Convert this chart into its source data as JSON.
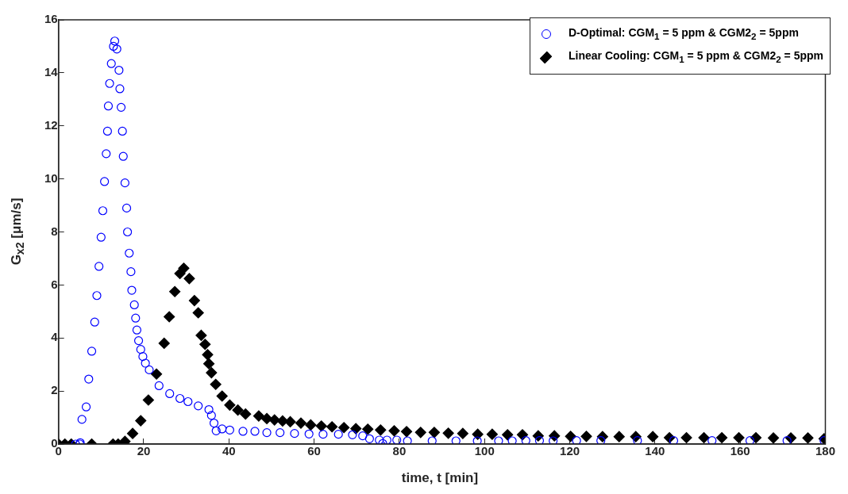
{
  "chart_data": {
    "type": "scatter",
    "xlabel": "time, t [min]",
    "ylabel": "G$_{x2}$ [μm/s]",
    "xlim": [
      0,
      180
    ],
    "xticks": [
      0,
      20,
      40,
      60,
      80,
      100,
      120,
      140,
      160,
      180
    ],
    "ylim": [
      0,
      16
    ],
    "yticks": [
      0,
      2,
      4,
      6,
      8,
      10,
      12,
      14,
      16
    ],
    "grid": false,
    "legend": "top right",
    "series": [
      {
        "name": "D-Optimal: CGM$_{1}$ = 5 ppm & CGM2$_{2}$ = 5ppm",
        "color": "#0000ff",
        "marker": "circle",
        "x": [
          4,
          5,
          5.1,
          5.5,
          6.5,
          7.1,
          7.8,
          8.5,
          9.0,
          9.5,
          10.0,
          10.4,
          10.8,
          11.2,
          11.5,
          11.7,
          12.0,
          12.4,
          12.9,
          13.2,
          13.7,
          14.2,
          14.4,
          14.7,
          15.0,
          15.2,
          15.6,
          16.0,
          16.2,
          16.6,
          17.0,
          17.2,
          17.8,
          18.1,
          18.4,
          18.8,
          19.3,
          19.8,
          20.4,
          21.3,
          23.6,
          26.1,
          28.5,
          30.4,
          32.8,
          35.3,
          35.9,
          36.5,
          37.0,
          38.4,
          40.2,
          43.3,
          46.1,
          48.9,
          52,
          55.4,
          58.8,
          62.1,
          65.7,
          69,
          71.4,
          73,
          75.3,
          76.1,
          77.1,
          79.4,
          81.9,
          87.7,
          93.3,
          98.3,
          103.3,
          106.5,
          109.7,
          112.9,
          116.1,
          121.6,
          127.3,
          135.9,
          144.4,
          153.4,
          162.3,
          171,
          179.7
        ],
        "values": [
          0,
          0,
          0.05,
          0.93,
          1.4,
          2.45,
          3.5,
          4.6,
          5.6,
          6.7,
          7.8,
          8.8,
          9.9,
          10.95,
          11.8,
          12.75,
          13.6,
          14.35,
          15.0,
          15.2,
          14.9,
          14.1,
          13.4,
          12.7,
          11.8,
          10.85,
          9.85,
          8.9,
          8.0,
          7.2,
          6.5,
          5.8,
          5.25,
          4.75,
          4.3,
          3.9,
          3.57,
          3.3,
          3.05,
          2.8,
          2.2,
          1.9,
          1.72,
          1.6,
          1.44,
          1.3,
          1.08,
          0.79,
          0.5,
          0.57,
          0.53,
          0.48,
          0.48,
          0.43,
          0.43,
          0.4,
          0.38,
          0.37,
          0.37,
          0.35,
          0.31,
          0.2,
          0.15,
          0.02,
          0.15,
          0.15,
          0.12,
          0.12,
          0.12,
          0.12,
          0.12,
          0.12,
          0.13,
          0.13,
          0.12,
          0.13,
          0.13,
          0.13,
          0.13,
          0.13,
          0.13,
          0.13,
          0.13
        ]
      },
      {
        "name": "Linear Cooling: CGM$_{1}$ = 5 ppm & CGM2$_{2}$ = 5ppm",
        "color": "#000000",
        "marker": "diamond",
        "x": [
          0,
          1.5,
          3,
          7.8,
          12.8,
          14,
          15.6,
          17.4,
          19.3,
          21.1,
          23,
          24.8,
          26,
          27.3,
          28.5,
          29.4,
          30.7,
          31.9,
          32.8,
          33.5,
          34.4,
          35,
          35.3,
          35.9,
          36.9,
          38.4,
          40.2,
          42.1,
          43.9,
          47,
          48.9,
          50.7,
          52.6,
          54.4,
          56.9,
          59.2,
          61.7,
          64.2,
          67,
          69.8,
          72.6,
          75.6,
          78.8,
          81.7,
          85,
          88.2,
          91.5,
          94.9,
          98.4,
          101.8,
          105.4,
          108.9,
          112.6,
          116.4,
          120.2,
          123.9,
          127.7,
          131.6,
          135.5,
          139.5,
          143.4,
          147.4,
          151.5,
          155.7,
          159.7,
          163.7,
          167.8,
          171.9,
          175.9,
          179.7
        ],
        "values": [
          0,
          0,
          0,
          0,
          0,
          0,
          0.1,
          0.4,
          0.88,
          1.66,
          2.64,
          3.8,
          4.8,
          5.75,
          6.43,
          6.63,
          6.24,
          5.41,
          4.95,
          4.1,
          3.76,
          3.37,
          3.03,
          2.69,
          2.25,
          1.81,
          1.47,
          1.28,
          1.13,
          1.06,
          0.96,
          0.91,
          0.87,
          0.84,
          0.79,
          0.72,
          0.68,
          0.65,
          0.62,
          0.58,
          0.56,
          0.53,
          0.5,
          0.47,
          0.44,
          0.44,
          0.41,
          0.4,
          0.37,
          0.37,
          0.35,
          0.35,
          0.31,
          0.31,
          0.29,
          0.29,
          0.28,
          0.28,
          0.28,
          0.28,
          0.24,
          0.24,
          0.24,
          0.24,
          0.24,
          0.24,
          0.23,
          0.23,
          0.23,
          0.2
        ]
      }
    ]
  }
}
